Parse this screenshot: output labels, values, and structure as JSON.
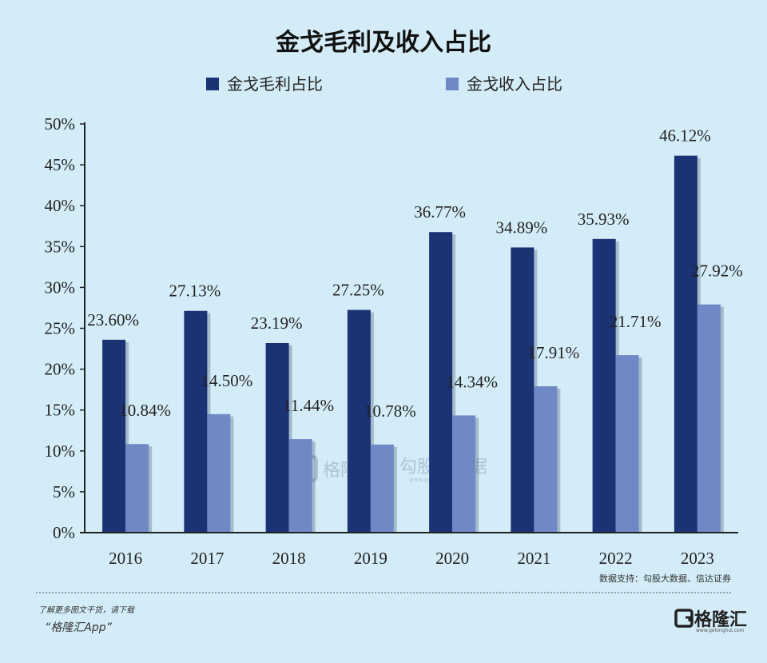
{
  "chart_data": {
    "type": "bar",
    "title": "金戈毛利及收入占比",
    "categories": [
      "2016",
      "2017",
      "2018",
      "2019",
      "2020",
      "2021",
      "2022",
      "2023"
    ],
    "series": [
      {
        "name": "金戈毛利占比",
        "values": [
          23.6,
          27.13,
          23.19,
          27.25,
          36.77,
          34.89,
          35.93,
          46.12
        ],
        "labels": [
          "23.60%",
          "27.13%",
          "23.19%",
          "27.25%",
          "36.77%",
          "34.89%",
          "35.93%",
          "46.12%"
        ],
        "color": "#1b3274"
      },
      {
        "name": "金戈收入占比",
        "values": [
          10.84,
          14.5,
          11.44,
          10.78,
          14.34,
          17.91,
          21.71,
          27.92
        ],
        "labels": [
          "10.84%",
          "14.50%",
          "11.44%",
          "10.78%",
          "14.34%",
          "17.91%",
          "21.71%",
          "27.92%"
        ],
        "color": "#7088c6"
      }
    ],
    "yticks": [
      "0%",
      "5%",
      "10%",
      "15%",
      "20%",
      "25%",
      "30%",
      "35%",
      "40%",
      "45%",
      "50%"
    ],
    "ylim": [
      0,
      50
    ],
    "xlabel": "",
    "ylabel": "",
    "legend": "top-center",
    "grid": false
  },
  "source": "数据支持：勾股大数据、信达证券",
  "watermark": {
    "brand": "格隆汇",
    "separator": "|",
    "data": "勾股大数据",
    "url": "www.gogudata.com"
  },
  "footer": {
    "note": "了解更多图文干货，请下载",
    "app": "“格隆汇App”",
    "logo_text": "格隆汇",
    "logo_url": "www.gelonghui.com"
  },
  "colors": {
    "background": "#d3ecf7",
    "series1": "#1b3274",
    "series2": "#7088c6"
  }
}
